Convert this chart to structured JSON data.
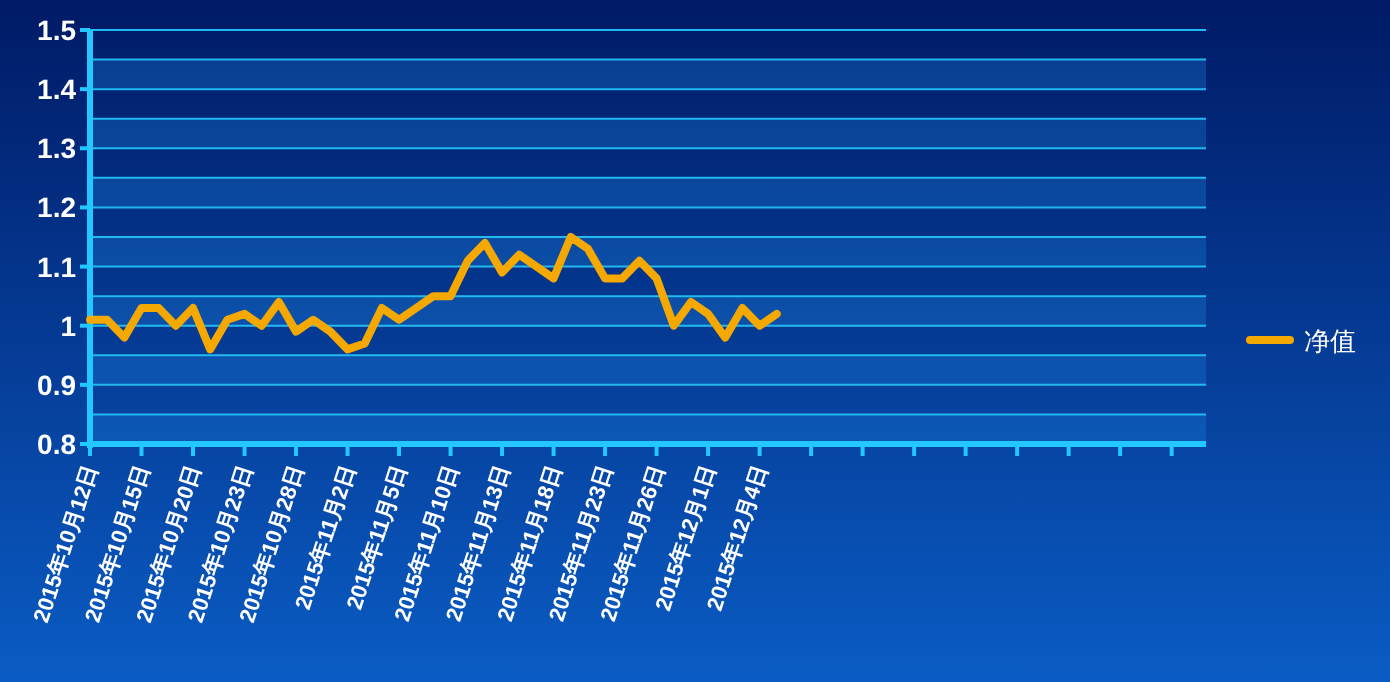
{
  "chart_data": {
    "type": "line",
    "categories": [
      "2015年10月12日",
      null,
      null,
      "2015年10月15日",
      null,
      null,
      "2015年10月20日",
      null,
      null,
      "2015年10月23日",
      null,
      null,
      "2015年10月28日",
      null,
      null,
      "2015年11月2日",
      null,
      null,
      "2015年11月5日",
      null,
      null,
      "2015年11月10日",
      null,
      null,
      "2015年11月13日",
      null,
      null,
      "2015年11月18日",
      null,
      null,
      "2015年11月23日",
      null,
      null,
      "2015年11月26日",
      null,
      null,
      "2015年12月1日",
      null,
      null,
      "2015年12月4日",
      null,
      null,
      null,
      null,
      null,
      null,
      null,
      null,
      null,
      null,
      null,
      null,
      null,
      null,
      null,
      null,
      null,
      null,
      null,
      null,
      null,
      null,
      null,
      null,
      null,
      null
    ],
    "series": [
      {
        "name": "净值",
        "color": "#f5a800",
        "values": [
          1.01,
          1.01,
          0.98,
          1.03,
          1.03,
          1.0,
          1.03,
          0.96,
          1.01,
          1.02,
          1.0,
          1.04,
          0.99,
          1.01,
          0.99,
          0.96,
          0.97,
          1.03,
          1.01,
          1.03,
          1.05,
          1.05,
          1.11,
          1.14,
          1.09,
          1.12,
          1.1,
          1.08,
          1.15,
          1.13,
          1.08,
          1.08,
          1.11,
          1.08,
          1.0,
          1.04,
          1.02,
          0.98,
          1.03,
          1.0,
          1.02,
          null,
          null,
          null,
          null,
          null,
          null,
          null,
          null,
          null,
          null,
          null,
          null,
          null,
          null,
          null,
          null,
          null,
          null,
          null,
          null,
          null,
          null,
          null,
          null,
          null
        ]
      }
    ],
    "ylim": [
      0.8,
      1.5
    ],
    "yticks": [
      0.8,
      {
        "value": 0.85,
        "label": null
      },
      0.9,
      {
        "value": 0.95,
        "label": null
      },
      1,
      {
        "value": 1.05,
        "label": null
      },
      1.1,
      {
        "value": 1.15,
        "label": null
      },
      1.2,
      {
        "value": 1.25,
        "label": null
      },
      1.3,
      {
        "value": 1.35,
        "label": null
      },
      1.4,
      {
        "value": 1.45,
        "label": null
      },
      1.5
    ],
    "bands": [
      {
        "axis": "y",
        "from": 0.8,
        "to": 0.85,
        "color": "#1a7ad6"
      },
      {
        "axis": "y",
        "from": 0.9,
        "to": 0.95,
        "color": "#1a7ad6"
      },
      {
        "axis": "y",
        "from": 1,
        "to": 1.05,
        "color": "#1a7ad6"
      },
      {
        "axis": "y",
        "from": 1.1,
        "to": 1.15,
        "color": "#1a7ad6"
      },
      {
        "axis": "y",
        "from": 1.2,
        "to": 1.25,
        "color": "#1a7ad6"
      },
      {
        "axis": "y",
        "from": 1.3,
        "to": 1.35,
        "color": "#1a7ad6"
      },
      {
        "axis": "y",
        "from": 1.4,
        "to": 1.45,
        "color": "#1a7ad6"
      }
    ],
    "grid": "y",
    "legend": "right",
    "marker": "none",
    "line_style": "solid"
  }
}
